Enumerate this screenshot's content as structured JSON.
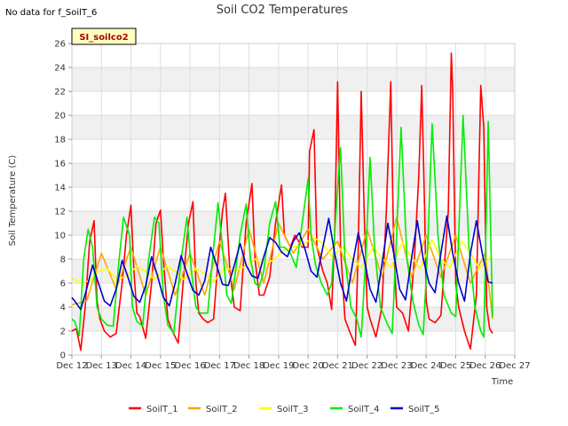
{
  "header": {
    "title": "Soil CO2 Temperatures",
    "no_data_note": "No data for f_SoilT_6",
    "badge": "SI_soilco2"
  },
  "chart_data": {
    "type": "line",
    "title": "Soil CO2 Temperatures",
    "xlabel": "Time",
    "ylabel": "Soil Temperature (C)",
    "xlim": [
      12,
      27
    ],
    "ylim": [
      0,
      26
    ],
    "x_ticks": [
      12,
      13,
      14,
      15,
      16,
      17,
      18,
      19,
      20,
      21,
      22,
      23,
      24,
      25,
      26,
      27
    ],
    "x_tick_labels": [
      "Dec 12",
      "Dec 13",
      "Dec 14",
      "Dec 15",
      "Dec 16",
      "Dec 17",
      "Dec 18",
      "Dec 19",
      "Dec 20",
      "Dec 21",
      "Dec 22",
      "Dec 23",
      "Dec 24",
      "Dec 25",
      "Dec 26",
      "Dec 27"
    ],
    "y_ticks": [
      0,
      2,
      4,
      6,
      8,
      10,
      12,
      14,
      16,
      18,
      20,
      22,
      24,
      26
    ],
    "grid": true,
    "legend_position": "bottom",
    "series": [
      {
        "name": "SoilT_1",
        "color": "#ff0000",
        "x": [
          12.0,
          12.15,
          12.3,
          12.45,
          12.6,
          12.75,
          12.85,
          12.95,
          13.1,
          13.3,
          13.5,
          13.7,
          13.85,
          14.0,
          14.1,
          14.2,
          14.3,
          14.5,
          14.7,
          14.85,
          15.0,
          15.1,
          15.25,
          15.4,
          15.6,
          15.8,
          15.95,
          16.1,
          16.2,
          16.3,
          16.45,
          16.6,
          16.8,
          16.95,
          17.1,
          17.2,
          17.35,
          17.5,
          17.7,
          17.9,
          18.1,
          18.2,
          18.35,
          18.5,
          18.7,
          18.9,
          19.1,
          19.2,
          19.4,
          19.55,
          19.8,
          20.0,
          20.05,
          20.2,
          20.3,
          20.5,
          20.65,
          20.8,
          20.9,
          21.0,
          21.1,
          21.25,
          21.4,
          21.6,
          21.7,
          21.8,
          21.9,
          22.0,
          22.1,
          22.3,
          22.5,
          22.65,
          22.8,
          22.9,
          23.0,
          23.2,
          23.4,
          23.6,
          23.75,
          23.85,
          23.95,
          24.0,
          24.1,
          24.3,
          24.5,
          24.75,
          24.85,
          24.9,
          25.0,
          25.1,
          25.3,
          25.5,
          25.7,
          25.85,
          25.95,
          26.05,
          26.15,
          26.25
        ],
        "y": [
          2.0,
          2.2,
          0.4,
          4,
          9.5,
          11.2,
          4.5,
          3,
          2,
          1.5,
          1.8,
          6,
          10,
          12.5,
          7,
          3.5,
          3.2,
          1.4,
          6,
          11,
          12.1,
          8,
          3,
          2,
          1,
          7,
          11,
          12.8,
          6,
          3.5,
          3,
          2.7,
          3,
          8,
          12,
          13.5,
          7,
          4,
          3.7,
          11,
          14.3,
          8,
          5,
          5,
          6.5,
          11,
          14.2,
          10,
          9,
          10,
          9,
          9,
          17,
          18.8,
          9,
          7,
          6,
          3.8,
          10,
          22.8,
          9,
          3,
          2,
          0.8,
          9,
          22,
          12,
          4,
          3,
          1.5,
          4,
          12,
          22.8,
          9,
          4,
          3.5,
          2,
          8,
          15,
          22.5,
          12,
          4.5,
          3,
          2.7,
          3.3,
          12,
          25.2,
          22,
          6,
          4,
          2,
          0.5,
          5,
          22.5,
          19,
          4,
          2.2,
          1.8
        ]
      },
      {
        "name": "SoilT_2",
        "color": "#ffa500",
        "x": [
          12.0,
          12.5,
          13.0,
          13.5,
          14.0,
          14.5,
          15.0,
          15.5,
          16.0,
          16.5,
          17.0,
          17.5,
          18.0,
          18.5,
          19.0,
          19.5,
          20.0,
          20.5,
          21.0,
          21.5,
          22.0,
          22.5,
          23.0,
          23.5,
          24.0,
          24.5,
          25.0,
          25.5,
          26.0,
          26.25
        ],
        "y": [
          4.2,
          4.5,
          8.5,
          5.5,
          9.0,
          5.0,
          9.0,
          5.0,
          8.5,
          5.0,
          9.5,
          5.5,
          10.5,
          6.0,
          11.0,
          8.5,
          10.5,
          8.0,
          9.5,
          6.0,
          10.5,
          6.5,
          11.5,
          6.5,
          10.0,
          6.5,
          10.0,
          6.0,
          8.5,
          3.0
        ]
      },
      {
        "name": "SoilT_3",
        "color": "#ffff00",
        "x": [
          12.0,
          12.3,
          12.6,
          12.9,
          13.2,
          13.5,
          13.8,
          14.2,
          14.5,
          14.8,
          15.2,
          15.5,
          15.8,
          16.2,
          16.5,
          16.8,
          17.2,
          17.5,
          17.8,
          18.2,
          18.5,
          18.8,
          19.2,
          19.5,
          19.8,
          20.2,
          20.5,
          20.8,
          21.2,
          21.5,
          21.8,
          22.2,
          22.5,
          22.8,
          23.2,
          23.5,
          23.8,
          24.2,
          24.5,
          24.8,
          25.2,
          25.5,
          25.8,
          26.2
        ],
        "y": [
          6.4,
          6.0,
          6.2,
          7.0,
          7.2,
          6.4,
          6.5,
          7.4,
          7.0,
          6.3,
          7.4,
          7.0,
          6.3,
          7.2,
          6.8,
          6.1,
          7.3,
          7.0,
          7.3,
          8.0,
          7.6,
          7.9,
          8.8,
          9.0,
          9.2,
          9.8,
          9.3,
          8.2,
          9.0,
          8.0,
          7.3,
          9.0,
          8.1,
          7.3,
          9.4,
          8.2,
          7.2,
          9.6,
          8.0,
          7.3,
          9.5,
          8.5,
          7.2,
          8.2
        ]
      },
      {
        "name": "SoilT_4",
        "color": "#00ee00",
        "x": [
          12.0,
          12.1,
          12.25,
          12.4,
          12.55,
          12.7,
          12.85,
          13.0,
          13.2,
          13.4,
          13.6,
          13.75,
          13.95,
          14.05,
          14.2,
          14.4,
          14.6,
          14.8,
          14.95,
          15.1,
          15.25,
          15.45,
          15.7,
          15.9,
          16.05,
          16.2,
          16.35,
          16.6,
          16.8,
          16.95,
          17.1,
          17.25,
          17.4,
          17.7,
          17.9,
          18.05,
          18.2,
          18.35,
          18.5,
          18.7,
          18.9,
          19.05,
          19.2,
          19.4,
          19.6,
          19.8,
          20.0,
          20.1,
          20.25,
          20.45,
          20.65,
          20.8,
          21.0,
          21.1,
          21.25,
          21.45,
          21.65,
          21.8,
          21.95,
          22.1,
          22.25,
          22.45,
          22.7,
          22.85,
          23.0,
          23.15,
          23.35,
          23.55,
          23.75,
          23.9,
          24.05,
          24.2,
          24.4,
          24.6,
          24.85,
          25.0,
          25.1,
          25.25,
          25.45,
          25.65,
          25.85,
          25.95,
          26.1,
          26.25
        ],
        "y": [
          3.0,
          2.8,
          1.6,
          8,
          10.5,
          9,
          4,
          3,
          2.5,
          2.4,
          8,
          11.5,
          10,
          4,
          2.8,
          2.4,
          8,
          11.5,
          11,
          5,
          2.5,
          1.8,
          8,
          11.5,
          7,
          4,
          3.5,
          3.5,
          9,
          12.7,
          9,
          5,
          4.3,
          10,
          12.6,
          8,
          6,
          5.7,
          7,
          11,
          12.8,
          9,
          9,
          8.5,
          7.3,
          11,
          14.7,
          10,
          7.5,
          6,
          5,
          6,
          14,
          17.3,
          8,
          4,
          3,
          1.5,
          8,
          16.5,
          9,
          4,
          2.5,
          1.8,
          10,
          19,
          8,
          4.5,
          2.5,
          1.7,
          9,
          19.3,
          10,
          5,
          3.5,
          3.2,
          10,
          20,
          9,
          4,
          2,
          1.5,
          19.5,
          3.2
        ]
      },
      {
        "name": "SoilT_5",
        "color": "#0000cc",
        "x": [
          12.0,
          12.1,
          12.3,
          12.5,
          12.7,
          12.9,
          13.1,
          13.3,
          13.5,
          13.7,
          13.9,
          14.1,
          14.3,
          14.5,
          14.7,
          14.9,
          15.1,
          15.3,
          15.5,
          15.7,
          15.9,
          16.1,
          16.3,
          16.5,
          16.7,
          16.9,
          17.1,
          17.3,
          17.5,
          17.7,
          17.9,
          18.1,
          18.3,
          18.5,
          18.7,
          18.9,
          19.1,
          19.3,
          19.5,
          19.7,
          19.9,
          20.1,
          20.3,
          20.5,
          20.7,
          20.9,
          21.1,
          21.3,
          21.5,
          21.7,
          21.9,
          22.1,
          22.3,
          22.5,
          22.7,
          22.9,
          23.1,
          23.3,
          23.5,
          23.7,
          23.9,
          24.1,
          24.3,
          24.5,
          24.7,
          24.9,
          25.1,
          25.3,
          25.5,
          25.7,
          25.9,
          26.1,
          26.25
        ],
        "y": [
          4.8,
          4.5,
          3.8,
          5.5,
          7.5,
          6.0,
          4.5,
          4.1,
          5.5,
          7.9,
          6.5,
          4.9,
          4.4,
          5.8,
          8.2,
          6.6,
          4.8,
          4.1,
          6.0,
          8.3,
          6.8,
          5.4,
          5.0,
          6.2,
          9.0,
          7.5,
          5.9,
          5.8,
          7.5,
          9.3,
          7.5,
          6.6,
          6.4,
          8.2,
          9.8,
          9.4,
          8.6,
          8.2,
          9.5,
          10.2,
          8.8,
          7.0,
          6.5,
          9.0,
          11.4,
          8.5,
          6.0,
          4.5,
          7.5,
          10.2,
          8.0,
          5.5,
          4.4,
          7.5,
          11.0,
          8.5,
          5.5,
          4.6,
          8.0,
          11.2,
          8.0,
          6.0,
          5.2,
          8.5,
          11.6,
          8.5,
          6.0,
          4.5,
          8.5,
          11.2,
          8.5,
          6.1,
          6.0
        ]
      }
    ]
  }
}
